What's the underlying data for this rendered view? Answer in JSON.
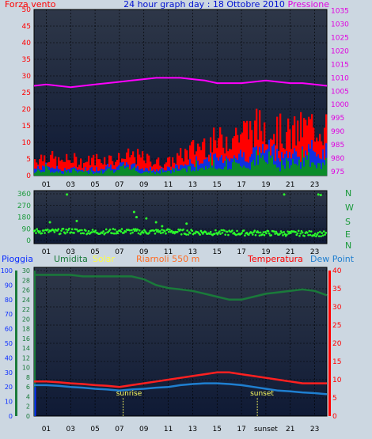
{
  "header": {
    "left": "Forza vento",
    "center": "24 hour graph day : 18 Ottobre 2010",
    "right": "Pressione"
  },
  "middle_header": {
    "pioggia": "Pioggia",
    "umidita": "Umidita",
    "solar": "Solar",
    "riarnoli": "Riarnoli 550 m",
    "temperatura": "Temperatura",
    "dewpoint": "Dew Point"
  },
  "compass": [
    "N",
    "W",
    "S",
    "E",
    "N"
  ],
  "sunrise_label": "sunrise",
  "sunset_label": "sunset",
  "colors": {
    "panel_bg_top": "#2e3748",
    "panel_bg_bottom": "#0f1a35",
    "wind_gust": "#ff0000",
    "wind_avg": "#1030e0",
    "wind_green": "#0a8c2a",
    "pressure": "#ff00ff",
    "direction": "#2bff2b",
    "humidity": "#1a7a3a",
    "temperature": "#ff2020",
    "dewpoint": "#1f7fd0",
    "solar": "#ffff40",
    "rain": "#0a2cff",
    "grid": "#000000"
  },
  "chart_data": [
    {
      "type": "line",
      "name": "wind_pressure",
      "title": "24 hour graph day : 18 Ottobre 2010",
      "x_ticks": [
        "01",
        "03",
        "05",
        "07",
        "09",
        "11",
        "13",
        "15",
        "17",
        "19",
        "21",
        "23"
      ],
      "x_range": [
        0,
        24
      ],
      "y_left_label": "Forza vento",
      "y_left_ticks": [
        0,
        5,
        10,
        15,
        20,
        25,
        30,
        35,
        40,
        45,
        50
      ],
      "y_left_range": [
        0,
        50
      ],
      "y_right_label": "Pressione",
      "y_right_ticks": [
        975,
        980,
        985,
        990,
        995,
        1000,
        1005,
        1010,
        1015,
        1020,
        1025,
        1030,
        1035
      ],
      "y_right_range": [
        973.5,
        1035.5
      ],
      "series": [
        {
          "name": "Raffica",
          "values": [
            5,
            6,
            4,
            5,
            4,
            5,
            5,
            5,
            6,
            5,
            4,
            4,
            6,
            8,
            10,
            10,
            12,
            13,
            14,
            15,
            13,
            12,
            14,
            15,
            14
          ]
        },
        {
          "name": "Vento medio",
          "values": [
            2,
            3,
            2,
            2,
            2,
            2,
            3,
            3,
            3,
            2,
            2,
            2,
            3,
            4,
            5,
            5,
            6,
            6,
            7,
            8,
            7,
            6,
            7,
            8,
            7
          ]
        },
        {
          "name": "Pressione",
          "values": [
            1007,
            1007.5,
            1007,
            1006.5,
            1007,
            1007.5,
            1008,
            1008.5,
            1009,
            1009.5,
            1010,
            1010,
            1010,
            1009.5,
            1009,
            1008,
            1008,
            1008,
            1008.5,
            1009,
            1008.5,
            1008,
            1008,
            1007.5,
            1007
          ]
        }
      ]
    },
    {
      "type": "scatter",
      "name": "wind_direction",
      "x_ticks": [
        "01",
        "03",
        "05",
        "07",
        "09",
        "11",
        "13",
        "15",
        "17",
        "19",
        "21",
        "23"
      ],
      "x_range": [
        0,
        24
      ],
      "y_ticks": [
        0,
        90,
        180,
        270,
        360
      ],
      "y_range": [
        0,
        360
      ],
      "y_right_labels": [
        "N",
        "W",
        "S",
        "E",
        "N"
      ],
      "values": [
        72,
        70,
        68,
        75,
        70,
        65,
        68,
        72,
        70,
        66,
        68,
        70,
        66,
        64,
        62,
        60,
        60,
        58,
        58,
        56,
        56,
        54,
        55,
        52,
        50
      ],
      "outliers": [
        {
          "x": 2.7,
          "y": 355
        },
        {
          "x": 1.3,
          "y": 140
        },
        {
          "x": 3.5,
          "y": 150
        },
        {
          "x": 8.2,
          "y": 220
        },
        {
          "x": 8.4,
          "y": 180
        },
        {
          "x": 9.2,
          "y": 170
        },
        {
          "x": 10.0,
          "y": 140
        },
        {
          "x": 10.5,
          "y": 110
        },
        {
          "x": 12.5,
          "y": 130
        },
        {
          "x": 20.5,
          "y": 355
        },
        {
          "x": 23.3,
          "y": 355
        },
        {
          "x": 23.5,
          "y": 350
        }
      ]
    },
    {
      "type": "line",
      "name": "temp_humidity",
      "x_ticks": [
        "01",
        "03",
        "05",
        "07",
        "09",
        "11",
        "13",
        "15",
        "17",
        "sunset",
        "21",
        "23"
      ],
      "x_range": [
        0,
        24
      ],
      "y_left_ticks_pioggia": [
        0,
        10,
        20,
        30,
        40,
        50,
        60,
        70,
        80,
        90,
        100
      ],
      "y_left_ticks_umidita": [
        0,
        2,
        4,
        6,
        8,
        10,
        12,
        14,
        16,
        18,
        20,
        22,
        24,
        26,
        28,
        30
      ],
      "y_right_ticks": [
        0,
        5,
        10,
        15,
        20,
        25,
        30,
        35,
        40
      ],
      "y_right_range": [
        0,
        40
      ],
      "series": [
        {
          "name": "Umidita",
          "values": [
            97,
            97,
            97,
            97,
            96,
            96,
            96,
            96,
            96,
            94,
            90,
            88,
            87,
            86,
            84,
            82,
            80,
            80,
            82,
            84,
            85,
            86,
            87,
            86,
            83
          ]
        },
        {
          "name": "Temperatura",
          "values": [
            9.5,
            9.5,
            9.3,
            9.0,
            8.8,
            8.5,
            8.3,
            8.0,
            8.5,
            9.0,
            9.5,
            10.0,
            10.5,
            11.0,
            11.5,
            12.0,
            12.0,
            11.5,
            11.0,
            10.5,
            10.0,
            9.5,
            9.0,
            9.0,
            9.0
          ]
        },
        {
          "name": "Dew Point",
          "values": [
            8.5,
            8.5,
            8.3,
            8.0,
            7.8,
            7.5,
            7.3,
            7.0,
            7.3,
            7.5,
            7.8,
            8.0,
            8.5,
            8.8,
            9.0,
            9.0,
            8.8,
            8.5,
            8.0,
            7.5,
            7.0,
            6.8,
            6.5,
            6.3,
            6.0
          ]
        }
      ]
    }
  ]
}
